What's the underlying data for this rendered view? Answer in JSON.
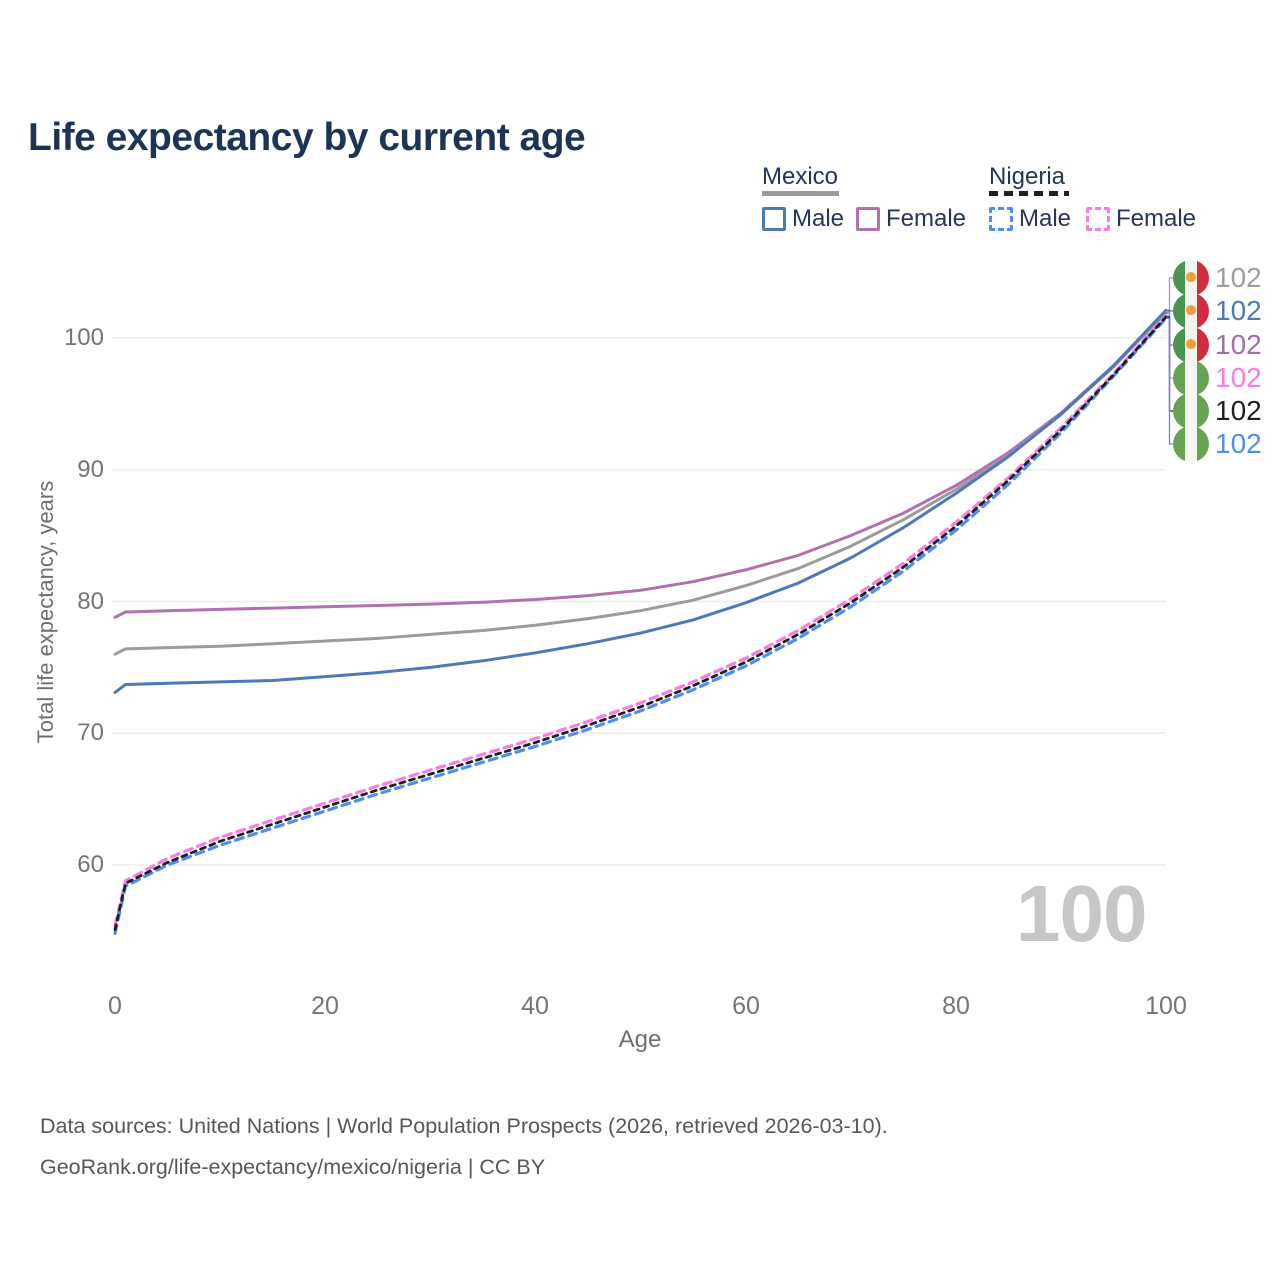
{
  "title": "Life expectancy by current age",
  "legend": {
    "groups": [
      {
        "country": "Mexico",
        "line_color": "#9b9b9b",
        "line_style": "solid",
        "items": [
          {
            "label": "Male",
            "color": "#4e79b8",
            "style": "solid"
          },
          {
            "label": "Female",
            "color": "#b170b2",
            "style": "solid"
          }
        ]
      },
      {
        "country": "Nigeria",
        "line_color": "#1f1f1f",
        "line_style": "dashed",
        "items": [
          {
            "label": "Male",
            "color": "#4d8ef5",
            "style": "dashed"
          },
          {
            "label": "Female",
            "color": "#fb7ce0",
            "style": "dashed"
          }
        ]
      }
    ]
  },
  "watermark": "100",
  "footer": {
    "line1": "Data sources: United Nations | World Population Prospects (2026, retrieved 2026-03-10).",
    "line2": "GeoRank.org/life-expectancy/mexico/nigeria | CC BY"
  },
  "colors": {
    "title_text": "#1c3455",
    "axis_text": "#757575",
    "gridline": "#ebebeb",
    "watermark": "#c7c7c7",
    "footer_text": "#575757"
  },
  "chart_data": {
    "type": "line",
    "title": "Life expectancy by current age",
    "xlabel": "Age",
    "ylabel": "Total life expectancy, years",
    "x_ticks": [
      "0",
      "20",
      "40",
      "60",
      "80",
      "100"
    ],
    "y_ticks": [
      "100",
      "90",
      "80",
      "70",
      "60"
    ],
    "xlim": [
      0,
      100
    ],
    "ylim": [
      54,
      104
    ],
    "grid": "horizontal-only",
    "legend_position": "top-right",
    "x": [
      0,
      1,
      5,
      10,
      15,
      20,
      25,
      30,
      35,
      40,
      45,
      50,
      55,
      60,
      65,
      70,
      75,
      80,
      85,
      90,
      95,
      100
    ],
    "series": [
      {
        "id": "mexico_female",
        "name": "Mexico Female",
        "country": "Mexico",
        "sex": "Female",
        "color": "#b170b2",
        "dash": null,
        "width": 3,
        "values": [
          78.8,
          79.2,
          79.3,
          79.4,
          79.5,
          79.6,
          79.7,
          79.8,
          79.95,
          80.15,
          80.45,
          80.85,
          81.5,
          82.4,
          83.5,
          85.0,
          86.7,
          88.8,
          91.3,
          94.3,
          97.9,
          101.9
        ]
      },
      {
        "id": "mexico_both",
        "name": "Mexico Both sexes",
        "country": "Mexico",
        "sex": "Both",
        "color": "#9b9b9b",
        "dash": null,
        "width": 3,
        "values": [
          76.0,
          76.4,
          76.5,
          76.6,
          76.8,
          77.0,
          77.2,
          77.5,
          77.8,
          78.2,
          78.7,
          79.3,
          80.1,
          81.2,
          82.5,
          84.2,
          86.2,
          88.5,
          91.1,
          94.2,
          97.8,
          102.0
        ]
      },
      {
        "id": "mexico_male",
        "name": "Mexico Male",
        "country": "Mexico",
        "sex": "Male",
        "color": "#4e79b8",
        "dash": null,
        "width": 3,
        "values": [
          73.1,
          73.7,
          73.8,
          73.9,
          74.0,
          74.3,
          74.6,
          75.0,
          75.5,
          76.1,
          76.8,
          77.6,
          78.6,
          79.9,
          81.4,
          83.3,
          85.6,
          88.2,
          91.0,
          94.2,
          97.9,
          102.1
        ]
      },
      {
        "id": "nigeria_female",
        "name": "Nigeria Female",
        "country": "Nigeria",
        "sex": "Female",
        "color": "#fb7ce0",
        "dash": "8 6",
        "width": 3.2,
        "values": [
          55.4,
          58.8,
          60.5,
          62.1,
          63.4,
          64.7,
          66.0,
          67.2,
          68.4,
          69.6,
          70.9,
          72.3,
          73.9,
          75.7,
          77.8,
          80.2,
          82.9,
          86.0,
          89.4,
          93.2,
          97.3,
          101.7
        ]
      },
      {
        "id": "nigeria_male",
        "name": "Nigeria Male",
        "country": "Nigeria",
        "sex": "Male",
        "color": "#4d8ef5",
        "dash": "8 6",
        "width": 3.2,
        "values": [
          54.8,
          58.4,
          60.0,
          61.5,
          62.8,
          64.1,
          65.4,
          66.6,
          67.8,
          69.0,
          70.3,
          71.7,
          73.3,
          75.1,
          77.2,
          79.6,
          82.3,
          85.4,
          88.9,
          92.8,
          97.1,
          101.5
        ]
      },
      {
        "id": "nigeria_both",
        "name": "Nigeria Both sexes",
        "country": "Nigeria",
        "sex": "Both",
        "color": "#1f1f1f",
        "dash": "5 5",
        "width": 2.8,
        "values": [
          55.1,
          58.6,
          60.2,
          61.8,
          63.1,
          64.4,
          65.7,
          66.9,
          68.1,
          69.3,
          70.6,
          72.0,
          73.6,
          75.4,
          77.5,
          79.9,
          82.6,
          85.7,
          89.2,
          93.0,
          97.2,
          101.6
        ]
      }
    ],
    "end_labels": [
      {
        "series_id": "mexico_both",
        "value": "102",
        "color": "#9e9e9e",
        "flag": "mexico-flag-icon"
      },
      {
        "series_id": "mexico_male",
        "value": "102",
        "color": "#4e79b8",
        "flag": "mexico-flag-icon"
      },
      {
        "series_id": "mexico_female",
        "value": "102",
        "color": "#a06dad",
        "flag": "mexico-flag-icon"
      },
      {
        "series_id": "nigeria_female",
        "value": "102",
        "color": "#fb7ce0",
        "flag": "nigeria-flag-icon"
      },
      {
        "series_id": "nigeria_both",
        "value": "102",
        "color": "#1f1f1f",
        "flag": "nigeria-flag-icon"
      },
      {
        "series_id": "nigeria_male",
        "value": "102",
        "color": "#4d8ef5",
        "flag": "nigeria-flag-icon"
      }
    ]
  }
}
